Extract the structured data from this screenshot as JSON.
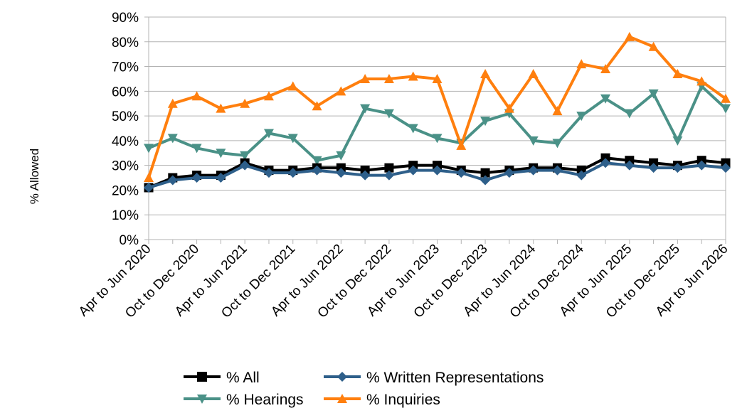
{
  "chart_data": {
    "type": "line",
    "ylabel": "% Allowed",
    "xlabel": "",
    "ylim": [
      0,
      90
    ],
    "y_ticks": [
      "0%",
      "10%",
      "20%",
      "30%",
      "40%",
      "50%",
      "60%",
      "70%",
      "80%",
      "90%"
    ],
    "grid": "horizontal",
    "legend_position": "bottom",
    "x": [
      "Apr to Jun 2020",
      "Jul to Sep 2020",
      "Oct to Dec 2020",
      "Jan to Mar 2021",
      "Apr to Jun 2021",
      "Jul to Sep 2021",
      "Oct to Dec 2021",
      "Jan to Mar 2022",
      "Apr to Jun 2022",
      "Jul to Sep 2022",
      "Oct to Dec 2022",
      "Jan to Mar 2023",
      "Apr to Jun 2023",
      "Jul to Sep 2023",
      "Oct to Dec 2023",
      "Jan to Mar 2024",
      "Apr to Jun 2024",
      "Jul to Sep 2024",
      "Oct to Dec 2024",
      "Jan to Mar 2025",
      "Apr to Jun 2025",
      "Jul to Sep 2025",
      "Oct to Dec 2025",
      "Jan to Mar 2026",
      "Apr to Jun 2026"
    ],
    "x_tick_labels": [
      "Apr to Jun 2020",
      "Oct to Dec 2020",
      "Apr to Jun 2021",
      "Oct to Dec 2021",
      "Apr to Jun 2022",
      "Oct to Dec 2022",
      "Apr to Jun 2023",
      "Oct to Dec 2023",
      "Apr to Jun 2024",
      "Oct to Dec 2024",
      "Apr to Jun 2025",
      "Oct to Dec 2025",
      "Apr to Jun 2026"
    ],
    "series": [
      {
        "name": "% All",
        "color": "#000000",
        "marker": "square",
        "values": [
          21,
          25,
          26,
          26,
          31,
          28,
          28,
          29,
          29,
          28,
          29,
          30,
          30,
          28,
          27,
          28,
          29,
          29,
          28,
          33,
          32,
          31,
          30,
          32,
          31
        ]
      },
      {
        "name": "% Written Representations",
        "color": "#2e5f8a",
        "marker": "diamond",
        "values": [
          21,
          24,
          25,
          25,
          30,
          27,
          27,
          28,
          27,
          26,
          26,
          28,
          28,
          27,
          24,
          27,
          28,
          28,
          26,
          31,
          30,
          29,
          29,
          30,
          29
        ]
      },
      {
        "name": "% Hearings",
        "color": "#4a9187",
        "marker": "triangle-down",
        "values": [
          37,
          41,
          37,
          35,
          34,
          43,
          41,
          32,
          34,
          53,
          51,
          45,
          41,
          39,
          48,
          51,
          40,
          39,
          50,
          57,
          51,
          59,
          40,
          62,
          53
        ]
      },
      {
        "name": "% Inquiries",
        "color": "#ff7f0e",
        "marker": "triangle-up",
        "values": [
          25,
          55,
          58,
          53,
          55,
          58,
          62,
          54,
          60,
          65,
          65,
          66,
          65,
          38,
          67,
          53,
          67,
          52,
          71,
          69,
          82,
          78,
          67,
          64,
          57
        ]
      }
    ]
  }
}
